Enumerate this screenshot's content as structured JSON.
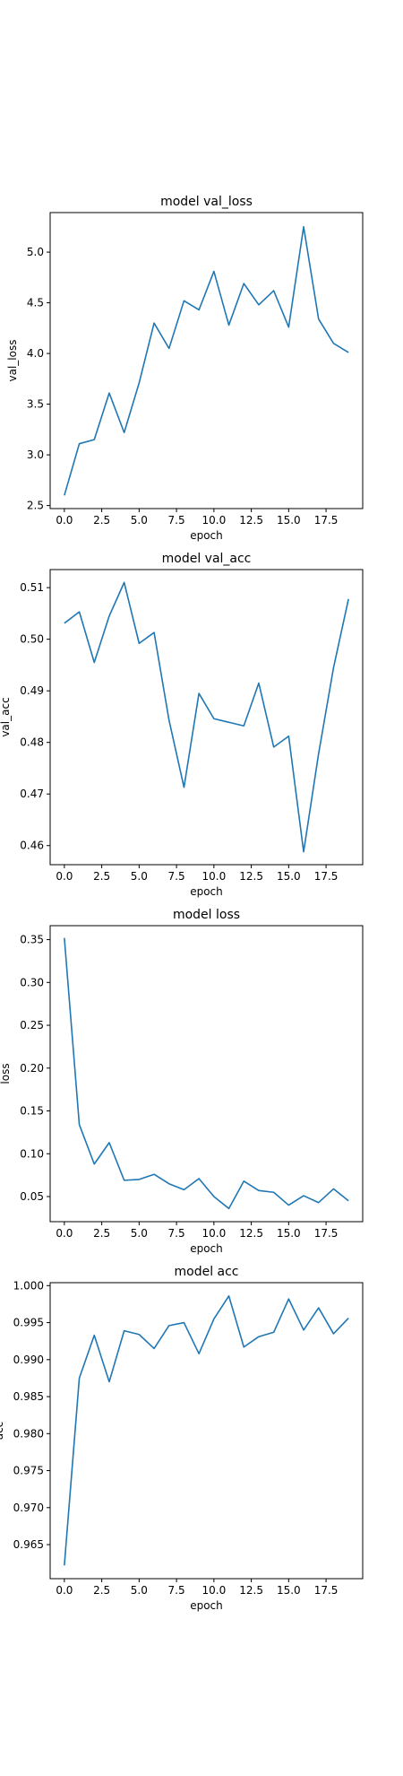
{
  "chart_data": [
    {
      "type": "line",
      "title": "model val_loss",
      "xlabel": "epoch",
      "ylabel": "val_loss",
      "xlim": [
        -0.95,
        19.95
      ],
      "ylim": [
        2.47,
        5.39
      ],
      "xticks": [
        0.0,
        2.5,
        5.0,
        7.5,
        10.0,
        12.5,
        15.0,
        17.5
      ],
      "xtick_labels": [
        "0.0",
        "2.5",
        "5.0",
        "7.5",
        "10.0",
        "12.5",
        "15.0",
        "17.5"
      ],
      "yticks": [
        2.5,
        3.0,
        3.5,
        4.0,
        4.5,
        5.0
      ],
      "ytick_labels": [
        "2.5",
        "3.0",
        "3.5",
        "4.0",
        "4.5",
        "5.0"
      ],
      "grid": false,
      "series": [
        {
          "color": "#1f77b4",
          "x": [
            0,
            1,
            2,
            3,
            4,
            5,
            6,
            7,
            8,
            9,
            10,
            11,
            12,
            13,
            14,
            15,
            16,
            17,
            18,
            19
          ],
          "values": [
            2.6,
            3.11,
            3.15,
            3.61,
            3.22,
            3.71,
            4.3,
            4.05,
            4.52,
            4.43,
            4.81,
            4.28,
            4.69,
            4.48,
            4.62,
            4.26,
            5.25,
            4.34,
            4.1,
            4.01
          ]
        }
      ]
    },
    {
      "type": "line",
      "title": "model val_acc",
      "xlabel": "epoch",
      "ylabel": "val_acc",
      "xlim": [
        -0.95,
        19.95
      ],
      "ylim": [
        0.4563,
        0.5135
      ],
      "xticks": [
        0.0,
        2.5,
        5.0,
        7.5,
        10.0,
        12.5,
        15.0,
        17.5
      ],
      "xtick_labels": [
        "0.0",
        "2.5",
        "5.0",
        "7.5",
        "10.0",
        "12.5",
        "15.0",
        "17.5"
      ],
      "yticks": [
        0.46,
        0.47,
        0.48,
        0.49,
        0.5,
        0.51
      ],
      "ytick_labels": [
        "0.46",
        "0.47",
        "0.48",
        "0.49",
        "0.50",
        "0.51"
      ],
      "grid": false,
      "series": [
        {
          "color": "#1f77b4",
          "x": [
            0,
            1,
            2,
            3,
            4,
            5,
            6,
            7,
            8,
            9,
            10,
            11,
            12,
            13,
            14,
            15,
            16,
            17,
            18,
            19
          ],
          "values": [
            0.5031,
            0.5053,
            0.4955,
            0.5045,
            0.511,
            0.4992,
            0.5013,
            0.4843,
            0.4713,
            0.4895,
            0.4846,
            0.4839,
            0.4832,
            0.4915,
            0.4791,
            0.4812,
            0.4588,
            0.4778,
            0.4945,
            0.5078
          ]
        }
      ]
    },
    {
      "type": "line",
      "title": "model loss",
      "xlabel": "epoch",
      "ylabel": "loss",
      "xlim": [
        -0.95,
        19.95
      ],
      "ylim": [
        0.0207,
        0.3663
      ],
      "xticks": [
        0.0,
        2.5,
        5.0,
        7.5,
        10.0,
        12.5,
        15.0,
        17.5
      ],
      "xtick_labels": [
        "0.0",
        "2.5",
        "5.0",
        "7.5",
        "10.0",
        "12.5",
        "15.0",
        "17.5"
      ],
      "yticks": [
        0.05,
        0.1,
        0.15,
        0.2,
        0.25,
        0.3,
        0.35
      ],
      "ytick_labels": [
        "0.05",
        "0.10",
        "0.15",
        "0.20",
        "0.25",
        "0.30",
        "0.35"
      ],
      "grid": false,
      "series": [
        {
          "color": "#1f77b4",
          "x": [
            0,
            1,
            2,
            3,
            4,
            5,
            6,
            7,
            8,
            9,
            10,
            11,
            12,
            13,
            14,
            15,
            16,
            17,
            18,
            19
          ],
          "values": [
            0.352,
            0.134,
            0.088,
            0.113,
            0.069,
            0.07,
            0.076,
            0.065,
            0.058,
            0.071,
            0.05,
            0.036,
            0.068,
            0.057,
            0.055,
            0.04,
            0.051,
            0.043,
            0.059,
            0.045
          ]
        }
      ]
    },
    {
      "type": "line",
      "title": "model acc",
      "xlabel": "epoch",
      "ylabel": "acc",
      "xlim": [
        -0.95,
        19.95
      ],
      "ylim": [
        0.9604,
        1.0004
      ],
      "xticks": [
        0.0,
        2.5,
        5.0,
        7.5,
        10.0,
        12.5,
        15.0,
        17.5
      ],
      "xtick_labels": [
        "0.0",
        "2.5",
        "5.0",
        "7.5",
        "10.0",
        "12.5",
        "15.0",
        "17.5"
      ],
      "yticks": [
        0.965,
        0.97,
        0.975,
        0.98,
        0.985,
        0.99,
        0.995,
        1.0
      ],
      "ytick_labels": [
        "0.965",
        "0.970",
        "0.975",
        "0.980",
        "0.985",
        "0.990",
        "0.995",
        "1.000"
      ],
      "grid": false,
      "series": [
        {
          "color": "#1f77b4",
          "x": [
            0,
            1,
            2,
            3,
            4,
            5,
            6,
            7,
            8,
            9,
            10,
            11,
            12,
            13,
            14,
            15,
            16,
            17,
            18,
            19
          ],
          "values": [
            0.9622,
            0.9875,
            0.9933,
            0.987,
            0.9939,
            0.9934,
            0.9915,
            0.9946,
            0.995,
            0.9908,
            0.9955,
            0.9986,
            0.9917,
            0.9931,
            0.9937,
            0.9982,
            0.994,
            0.997,
            0.9935,
            0.9956
          ]
        }
      ]
    }
  ]
}
